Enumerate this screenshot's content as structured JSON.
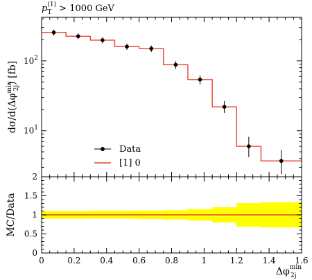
{
  "chart_data": [
    {
      "type": "line",
      "panel": "main",
      "title_parts": {
        "p": "p",
        "sub": "T",
        "sup": "(1)",
        "rest": " > 1000 GeV"
      },
      "ylabel_parts": {
        "pre": "dσ/d(Δφ",
        "sup": "min",
        "sub": "2j",
        "post": ") [fb]"
      },
      "yscale": "log",
      "ylim": [
        2.2,
        420
      ],
      "xlim": [
        0,
        1.6
      ],
      "y_ticks": [
        {
          "value": 10,
          "base": "10",
          "exp": "1"
        },
        {
          "value": 100,
          "base": "10",
          "exp": "2"
        }
      ],
      "legend": {
        "position": "bottom-left",
        "data_label": "Data",
        "mc_label": "[1] 0"
      },
      "colors": {
        "data": "#000000",
        "mc": "#e8442a"
      },
      "bin_edges": [
        0,
        0.15,
        0.3,
        0.45,
        0.6,
        0.75,
        0.9,
        1.05,
        1.2,
        1.35,
        1.6
      ],
      "series": [
        {
          "name": "Data",
          "x": [
            0.075,
            0.225,
            0.375,
            0.525,
            0.675,
            0.825,
            0.975,
            1.125,
            1.275,
            1.475
          ],
          "y": [
            255,
            225,
            198,
            160,
            150,
            88,
            54,
            22,
            6.0,
            3.7
          ],
          "yerr_low": [
            25,
            22,
            20,
            16,
            16,
            11,
            8,
            4,
            1.8,
            1.3
          ],
          "yerr_high": [
            25,
            22,
            20,
            16,
            16,
            11,
            8,
            4.5,
            2.2,
            1.6
          ]
        },
        {
          "name": "[1] 0",
          "values": [
            255,
            225,
            198,
            160,
            150,
            88,
            54,
            22,
            6.0,
            3.7
          ]
        }
      ]
    },
    {
      "type": "area",
      "panel": "ratio",
      "ylabel": "MC/Data",
      "xlabel_parts": {
        "pre": "Δφ",
        "sup": "min",
        "sub": "2j"
      },
      "ylim": [
        0,
        2
      ],
      "xlim": [
        0,
        1.6
      ],
      "y_ticks": [
        "0",
        "0.5",
        "1",
        "1.5",
        "2"
      ],
      "x_ticks": [
        "0",
        "0.2",
        "0.4",
        "0.6",
        "0.8",
        "1",
        "1.2",
        "1.4",
        "1.6"
      ],
      "colors": {
        "band": "#ffff00",
        "line": "#e8442a"
      },
      "bin_edges": [
        0,
        0.15,
        0.3,
        0.45,
        0.6,
        0.75,
        0.9,
        1.05,
        1.2,
        1.35,
        1.6
      ],
      "ratio": [
        1,
        1,
        1,
        1,
        1,
        1,
        1,
        1,
        1,
        1
      ],
      "band_low": [
        0.9,
        0.9,
        0.9,
        0.9,
        0.89,
        0.88,
        0.85,
        0.8,
        0.69,
        0.67
      ],
      "band_high": [
        1.1,
        1.1,
        1.11,
        1.11,
        1.11,
        1.12,
        1.15,
        1.2,
        1.31,
        1.33
      ]
    }
  ]
}
